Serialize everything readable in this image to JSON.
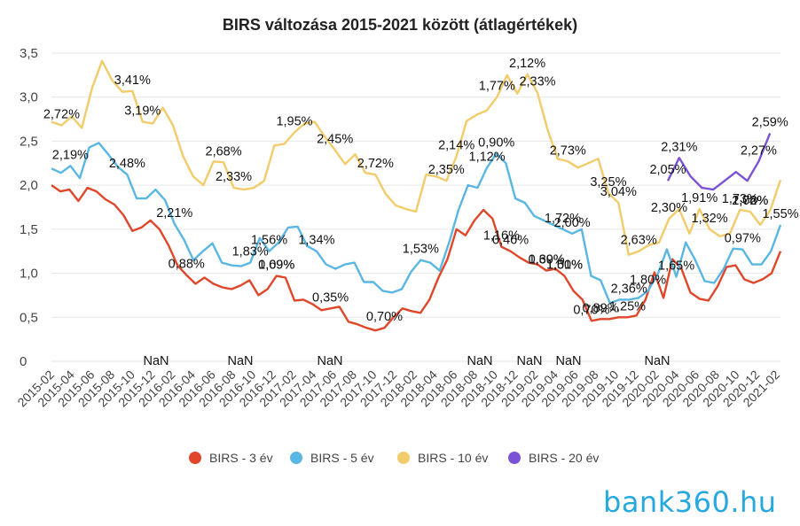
{
  "chart_data": {
    "type": "line",
    "title": "BIRS változása 2015-2021 között (átlagértékek)",
    "ylim": [
      0,
      3.5
    ],
    "yticks": [
      "0",
      "0,5",
      "1,0",
      "1,5",
      "2,0",
      "2,5",
      "3,0",
      "3,5"
    ],
    "x_tick_labels": [
      "2015-02",
      "2015-04",
      "2015-06",
      "2015-08",
      "2015-10",
      "2015-12",
      "2016-02",
      "2016-04",
      "2016-06",
      "2016-08",
      "2016-10",
      "2016-12",
      "2017-02",
      "2017-04",
      "2017-06",
      "2017-08",
      "2017-10",
      "2017-12",
      "2018-02",
      "2018-04",
      "2018-06",
      "2018-08",
      "2018-10",
      "2018-12",
      "2019-02",
      "2019-04",
      "2019-06",
      "2019-08",
      "2019-10",
      "2019-12",
      "2020-02",
      "2020-04",
      "2020-06",
      "2020-08",
      "2020-10",
      "2020-12",
      "2021-02"
    ],
    "x_start": "2015-02",
    "legend_position": "bottom",
    "series": [
      {
        "name": "BIRS - 3 év",
        "color": "#e0462a",
        "values": [
          2.0,
          1.93,
          1.95,
          1.82,
          1.97,
          1.93,
          1.84,
          1.78,
          1.66,
          1.48,
          1.52,
          1.6,
          1.5,
          1.32,
          1.09,
          0.98,
          0.88,
          0.95,
          0.88,
          0.84,
          0.82,
          0.86,
          0.92,
          0.75,
          0.82,
          0.97,
          0.95,
          0.69,
          0.7,
          0.65,
          0.58,
          0.6,
          0.62,
          0.45,
          0.42,
          0.38,
          0.35,
          0.38,
          0.5,
          0.6,
          0.57,
          0.55,
          0.7,
          0.95,
          1.16,
          1.5,
          1.43,
          1.6,
          1.72,
          1.62,
          1.3,
          1.25,
          1.18,
          1.12,
          1.1,
          1.03,
          1.05,
          0.97,
          0.8,
          0.7,
          0.46,
          0.48,
          0.48,
          0.5,
          0.5,
          0.52,
          0.7,
          1.01,
          0.72,
          1.16,
          1.05,
          0.78,
          0.71,
          0.69,
          0.85,
          1.07,
          1.09,
          0.93,
          0.89,
          0.93,
          1.0,
          1.25
        ],
        "labels": [
          [
            37,
            "0,88%"
          ],
          [
            59,
            "0,69%"
          ],
          [
            74,
            "0,35%"
          ],
          [
            88,
            "0,70%"
          ],
          [
            123,
            "0,46%"
          ],
          [
            137,
            "1,01%"
          ],
          [
            144,
            "0,70%"
          ],
          [
            132,
            "0,69%"
          ],
          [
            133,
            "1,30%"
          ],
          [
            121,
            "1,16%"
          ],
          [
            137,
            "1,50%"
          ],
          [
            146,
            "0,89%"
          ],
          [
            153,
            "1,25%"
          ],
          [
            59,
            "1,09%"
          ]
        ]
      },
      {
        "name": "BIRS - 5 év",
        "color": "#5ab6e2",
        "values": [
          2.19,
          2.14,
          2.22,
          2.08,
          2.43,
          2.48,
          2.35,
          2.21,
          2.12,
          1.85,
          1.85,
          1.95,
          1.83,
          1.56,
          1.38,
          1.15,
          1.25,
          1.34,
          1.12,
          1.09,
          1.08,
          1.12,
          1.4,
          1.25,
          1.35,
          1.52,
          1.53,
          1.31,
          1.25,
          1.1,
          1.05,
          1.1,
          1.12,
          0.9,
          0.9,
          0.8,
          0.78,
          0.82,
          1.02,
          1.15,
          1.12,
          1.03,
          1.35,
          1.72,
          2.0,
          1.97,
          2.2,
          2.36,
          2.25,
          1.85,
          1.8,
          1.65,
          1.6,
          1.55,
          1.5,
          1.45,
          1.5,
          0.97,
          0.92,
          0.66,
          0.7,
          0.7,
          0.72,
          0.8,
          0.98,
          1.27,
          0.96,
          1.35,
          1.15,
          0.91,
          0.89,
          1.05,
          1.28,
          1.27,
          1.1,
          1.1,
          1.25,
          1.55
        ],
        "labels": [
          [
            5,
            "2,19%"
          ],
          [
            20,
            "2,48%"
          ],
          [
            33,
            "2,21%"
          ],
          [
            53,
            "1,83%"
          ],
          [
            57,
            "1,56%"
          ],
          [
            70,
            "1,34%"
          ],
          [
            99,
            "1,53%"
          ],
          [
            117,
            "1,12%"
          ],
          [
            119,
            "0,90%"
          ],
          [
            137,
            "1,72%"
          ],
          [
            140,
            "2,00%"
          ],
          [
            155,
            "2,36%"
          ],
          [
            160,
            "1,80%"
          ],
          [
            168,
            "1,65%"
          ],
          [
            184,
            "0,97%"
          ],
          [
            195,
            "1,55%"
          ]
        ]
      },
      {
        "name": "BIRS - 10 év",
        "color": "#f2cc6b",
        "values": [
          2.72,
          2.68,
          2.78,
          2.65,
          3.1,
          3.41,
          3.19,
          3.06,
          3.07,
          2.72,
          2.7,
          2.88,
          2.68,
          2.33,
          2.1,
          2.0,
          2.27,
          2.26,
          1.97,
          1.95,
          1.97,
          2.05,
          2.45,
          2.47,
          2.6,
          2.7,
          2.72,
          2.55,
          2.4,
          2.24,
          2.35,
          2.14,
          2.12,
          1.9,
          1.77,
          1.73,
          1.7,
          2.12,
          2.1,
          2.05,
          2.33,
          2.73,
          2.8,
          2.85,
          3.0,
          3.25,
          3.04,
          3.26,
          3.05,
          2.63,
          2.3,
          2.27,
          2.2,
          2.25,
          2.3,
          1.91,
          1.8,
          1.21,
          1.25,
          1.32,
          1.35,
          1.62,
          1.73,
          1.45,
          1.73,
          1.5,
          1.42,
          1.45,
          1.72,
          1.7,
          1.55,
          1.72,
          2.06
        ],
        "labels": [
          [
            4,
            "2,72%"
          ],
          [
            23,
            "3,41%"
          ],
          [
            24,
            "3,19%"
          ],
          [
            46,
            "2,68%"
          ],
          [
            48,
            "2,33%"
          ],
          [
            64,
            "1,95%"
          ],
          [
            76,
            "2,45%"
          ],
          [
            88,
            "2,72%"
          ],
          [
            105,
            "2,35%"
          ],
          [
            108,
            "2,14%"
          ],
          [
            119,
            "1,77%"
          ],
          [
            126,
            "2,12%"
          ],
          [
            129,
            "2,33%"
          ],
          [
            137,
            "2,73%"
          ],
          [
            150,
            "3,25%"
          ],
          [
            152,
            "3,04%"
          ],
          [
            156,
            "2,63%"
          ],
          [
            164,
            "2,30%"
          ],
          [
            172,
            "1,91%"
          ],
          [
            176,
            "1,32%"
          ],
          [
            184,
            "1,73%"
          ],
          [
            186,
            "1,72%"
          ],
          [
            188,
            "2,06%"
          ]
        ]
      },
      {
        "name": "BIRS - 20 év",
        "color": "#7b52d6",
        "start_index": 66,
        "values": [
          2.05,
          2.31,
          2.1,
          1.97,
          1.95,
          2.05,
          2.15,
          2.05,
          2.27,
          2.59
        ],
        "labels": [
          [
            0,
            "2,05%"
          ],
          [
            1,
            "2,31%"
          ],
          [
            8,
            "2,27%"
          ],
          [
            9,
            "2,59%"
          ]
        ]
      }
    ],
    "nan_labels": [
      "NaN",
      "NaN",
      "NaN",
      "NaN",
      "NaN",
      "NaN",
      "NaN"
    ]
  },
  "brand": {
    "logo_text": "bank360.hu"
  }
}
